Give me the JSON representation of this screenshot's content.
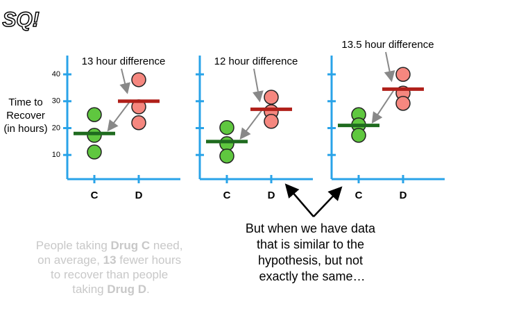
{
  "logo": "SQ!",
  "chart_data": [
    {
      "type": "dot",
      "annotation": "13 hour difference",
      "ylabel": [
        "Time to",
        "Recover",
        "(in hours)"
      ],
      "categories": [
        "C",
        "D"
      ],
      "values": [
        [
          25,
          17.3,
          11.1
        ],
        [
          38,
          27.9,
          22
        ]
      ],
      "means": [
        18,
        30
      ],
      "colors": [
        "#5fc73f",
        "#f5877f"
      ],
      "mean_colors": [
        "#1f6b1f",
        "#b0201a"
      ],
      "ylim": [
        1,
        47
      ],
      "yticks": [
        10,
        20,
        30,
        40
      ],
      "tick_labels": true
    },
    {
      "type": "dot",
      "annotation": "12 hour difference",
      "categories": [
        "C",
        "D"
      ],
      "values": [
        [
          20.2,
          14.2,
          9.6
        ],
        [
          31.5,
          26.1,
          22.5
        ]
      ],
      "means": [
        15,
        27
      ],
      "colors": [
        "#5fc73f",
        "#f5877f"
      ],
      "mean_colors": [
        "#1f6b1f",
        "#b0201a"
      ],
      "ylim": [
        1,
        47
      ],
      "yticks": [
        10,
        20,
        30,
        40
      ],
      "tick_labels": false
    },
    {
      "type": "dot",
      "annotation": "13.5 hour difference",
      "categories": [
        "C",
        "D"
      ],
      "values": [
        [
          25,
          21.2,
          17.3
        ],
        [
          40,
          33,
          29.2
        ]
      ],
      "means": [
        21,
        34.5
      ],
      "colors": [
        "#5fc73f",
        "#f5877f"
      ],
      "mean_colors": [
        "#1f6b1f",
        "#b0201a"
      ],
      "ylim": [
        1,
        47
      ],
      "yticks": [
        10,
        20,
        30,
        40
      ],
      "tick_labels": false
    }
  ],
  "caption": [
    [
      "People taking ",
      "Drug C",
      " need,"
    ],
    [
      "on average, ",
      "13",
      " fewer hours"
    ],
    [
      "to recover than people"
    ],
    [
      "taking ",
      "Drug D",
      "."
    ]
  ],
  "callout": [
    "But when we have data",
    "that is similar to the",
    "hypothesis, but not",
    "exactly the same…"
  ]
}
